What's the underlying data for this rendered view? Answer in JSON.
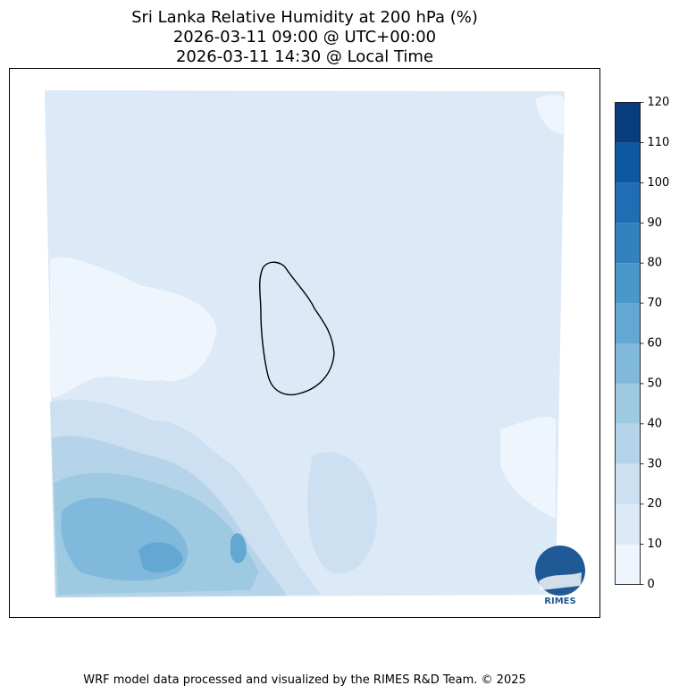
{
  "title": [
    "Sri Lanka Relative Humidity at 200 hPa (%)",
    "2026-03-11 09:00 @ UTC+00:00",
    "2026-03-11 14:30 @ Local Time"
  ],
  "colorbar": {
    "lim": [
      0,
      120
    ],
    "ticks": [
      0,
      10,
      20,
      30,
      40,
      50,
      60,
      70,
      80,
      90,
      100,
      110,
      120
    ],
    "colors": [
      "#eef5fc",
      "#dce9f6",
      "#cde0f1",
      "#b6d4e9",
      "#9ecae1",
      "#81b9dc",
      "#63a8d3",
      "#4a97c9",
      "#3282be",
      "#1f6eb3",
      "#0d58a1",
      "#083c7d"
    ]
  },
  "logo": "RIMES",
  "footer": "WRF model data processed and visualized by the RIMES R&D Team. © 2025"
}
